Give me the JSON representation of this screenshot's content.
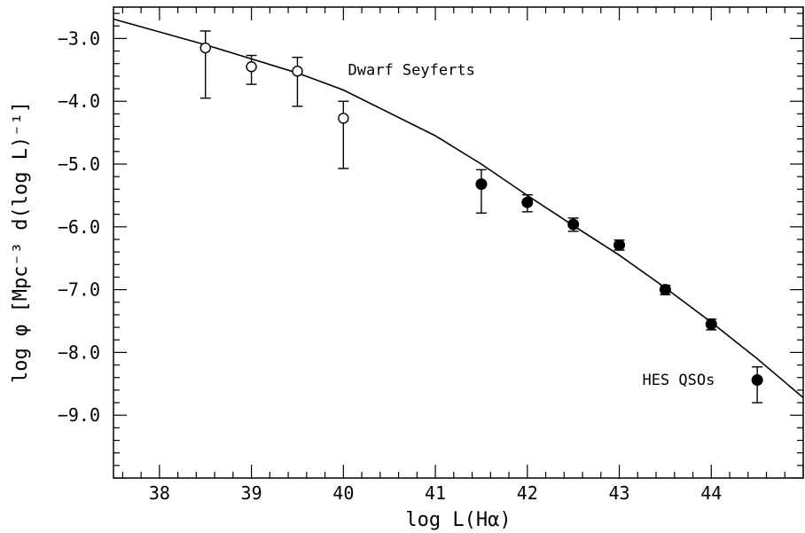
{
  "chart_data": {
    "type": "scatter",
    "xlabel": "log L(Hα)",
    "ylabel": "log φ [Mpc⁻³ d(log L)⁻¹]",
    "xlim": [
      37.5,
      45.0
    ],
    "ylim": [
      -10.0,
      -2.5
    ],
    "grid": false,
    "x_ticks": [
      38,
      39,
      40,
      41,
      42,
      43,
      44
    ],
    "x_tick_labels": [
      "38",
      "39",
      "40",
      "41",
      "42",
      "43",
      "44"
    ],
    "y_ticks": [
      -3,
      -4,
      -5,
      -6,
      -7,
      -8,
      -9
    ],
    "y_tick_labels": [
      "−3.0",
      "−4.0",
      "−5.0",
      "−6.0",
      "−7.0",
      "−8.0",
      "−9.0"
    ],
    "annotations": [
      {
        "text": "Dwarf Seyferts",
        "x": 40.05,
        "y": -3.58
      },
      {
        "text": "HES QSOs",
        "x": 43.25,
        "y": -8.52
      }
    ],
    "series": [
      {
        "name": "Dwarf Seyferts",
        "marker": "open-circle",
        "points": [
          {
            "x": 38.5,
            "y": -3.15,
            "ylo": -3.95,
            "yhi": -2.88
          },
          {
            "x": 39.0,
            "y": -3.45,
            "ylo": -3.73,
            "yhi": -3.27
          },
          {
            "x": 39.5,
            "y": -3.52,
            "ylo": -4.08,
            "yhi": -3.3
          },
          {
            "x": 40.0,
            "y": -4.27,
            "ylo": -5.07,
            "yhi": -4.0
          }
        ]
      },
      {
        "name": "HES QSOs",
        "marker": "filled-circle",
        "points": [
          {
            "x": 41.5,
            "y": -5.32,
            "ylo": -5.78,
            "yhi": -5.09
          },
          {
            "x": 42.0,
            "y": -5.61,
            "ylo": -5.76,
            "yhi": -5.49
          },
          {
            "x": 42.5,
            "y": -5.96,
            "ylo": -6.07,
            "yhi": -5.86
          },
          {
            "x": 43.0,
            "y": -6.29,
            "ylo": -6.37,
            "yhi": -6.21
          },
          {
            "x": 43.5,
            "y": -7.0,
            "ylo": -7.08,
            "yhi": -6.93
          },
          {
            "x": 44.0,
            "y": -7.55,
            "ylo": -7.64,
            "yhi": -7.47
          },
          {
            "x": 44.5,
            "y": -8.44,
            "ylo": -8.8,
            "yhi": -8.23
          }
        ]
      },
      {
        "marker": "line",
        "points": [
          {
            "x": 37.5,
            "y": -2.69
          },
          {
            "x": 38.5,
            "y": -3.1
          },
          {
            "x": 39.5,
            "y": -3.55
          },
          {
            "x": 40.0,
            "y": -3.82
          },
          {
            "x": 41.0,
            "y": -4.55
          },
          {
            "x": 41.5,
            "y": -5.0
          },
          {
            "x": 42.0,
            "y": -5.5
          },
          {
            "x": 42.5,
            "y": -5.98
          },
          {
            "x": 43.0,
            "y": -6.45
          },
          {
            "x": 43.5,
            "y": -6.97
          },
          {
            "x": 44.0,
            "y": -7.52
          },
          {
            "x": 44.5,
            "y": -8.1
          },
          {
            "x": 45.0,
            "y": -8.72
          }
        ]
      }
    ]
  }
}
